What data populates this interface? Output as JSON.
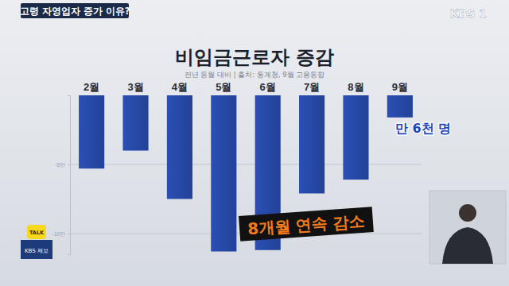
{
  "header": {
    "banner": "고령 자영업자 증가 이유?",
    "logo": "KBS 1",
    "tip_badge": "TALK",
    "tip_label": "KBS 제보"
  },
  "chart_data": {
    "type": "bar",
    "title": "비임금근로자 증감",
    "subtitle": "전년 동월 대비  |  출처: 통계청, 9월 고용동향",
    "categories": [
      "2월",
      "3월",
      "4월",
      "5월",
      "6월",
      "7월",
      "8월",
      "9월"
    ],
    "values": [
      -53000,
      -40000,
      -75000,
      -113000,
      -112000,
      -71000,
      -61000,
      -16000
    ],
    "color": "#2a4fb5",
    "ylim": [
      -115000,
      0
    ],
    "yticks": [
      {
        "value": -50000,
        "label": "-5만"
      },
      {
        "value": -100000,
        "label": "-10만"
      }
    ],
    "grid": true,
    "annotations": [
      {
        "text": "만 6천 명"
      },
      {
        "text": "8개월 연속 감소"
      }
    ]
  }
}
